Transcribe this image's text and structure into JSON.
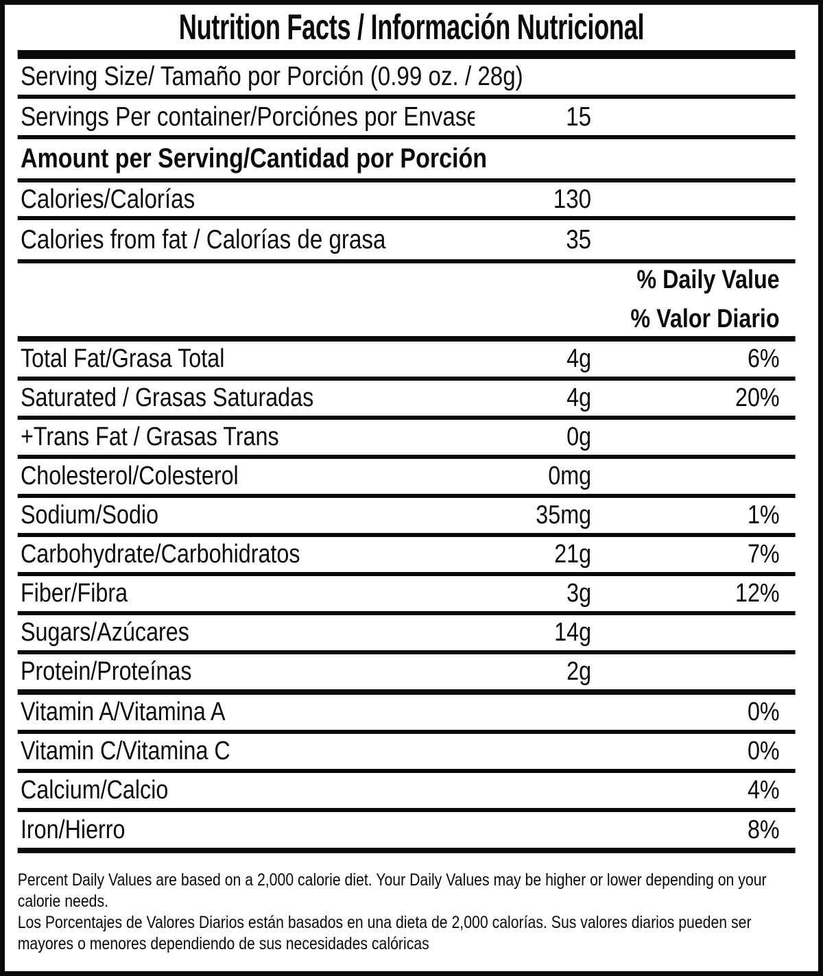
{
  "label": {
    "title": "Nutrition Facts / Información Nutricional",
    "serving_size": "Serving Size/ Tamaño por Porción (0.99 oz. / 28g)",
    "servings_per_container": {
      "label": "Servings Per container/Porciónes por Envase:",
      "value": "15"
    },
    "amount_per_serving": "Amount per Serving/Cantidad por Porción",
    "calories": {
      "label": "Calories/Calorías",
      "value": "130"
    },
    "calories_from_fat": {
      "label": "Calories from fat / Calorías de grasa",
      "value": "35"
    },
    "daily_value_header_en": "% Daily Value",
    "daily_value_header_es": "% Valor Diario",
    "nutrients": [
      {
        "label": "Total Fat/Grasa Total",
        "amount": "4g",
        "dv": "6%"
      },
      {
        "label": "Saturated / Grasas Saturadas",
        "amount": "4g",
        "dv": "20%"
      },
      {
        "label": "+Trans Fat / Grasas Trans",
        "amount": "0g",
        "dv": ""
      },
      {
        "label": "Cholesterol/Colesterol",
        "amount": "0mg",
        "dv": ""
      },
      {
        "label": "Sodium/Sodio",
        "amount": "35mg",
        "dv": "1%"
      },
      {
        "label": "Carbohydrate/Carbohidratos",
        "amount": "21g",
        "dv": "7%"
      },
      {
        "label": "Fiber/Fibra",
        "amount": "3g",
        "dv": "12%"
      },
      {
        "label": "Sugars/Azúcares",
        "amount": "14g",
        "dv": ""
      },
      {
        "label": "Protein/Proteínas",
        "amount": "2g",
        "dv": ""
      },
      {
        "label": "Vitamin A/Vitamina A",
        "amount": "",
        "dv": "0%"
      },
      {
        "label": "Vitamin C/Vitamina C",
        "amount": "",
        "dv": "0%"
      },
      {
        "label": "Calcium/Calcio",
        "amount": "",
        "dv": "4%"
      },
      {
        "label": "Iron/Hierro",
        "amount": "",
        "dv": "8%"
      }
    ],
    "footnote_en": "Percent Daily Values are based on a 2,000 calorie diet. Your Daily Values may be higher or lower depending on your calorie needs.",
    "footnote_es": "Los Porcentajes de Valores Diarios están basados en una dieta de 2,000 calorías. Sus valores diarios pueden ser mayores o menores dependiendo de sus necesidades calóricas"
  },
  "colors": {
    "ink": "#0a0a0a",
    "background": "#ffffff"
  }
}
